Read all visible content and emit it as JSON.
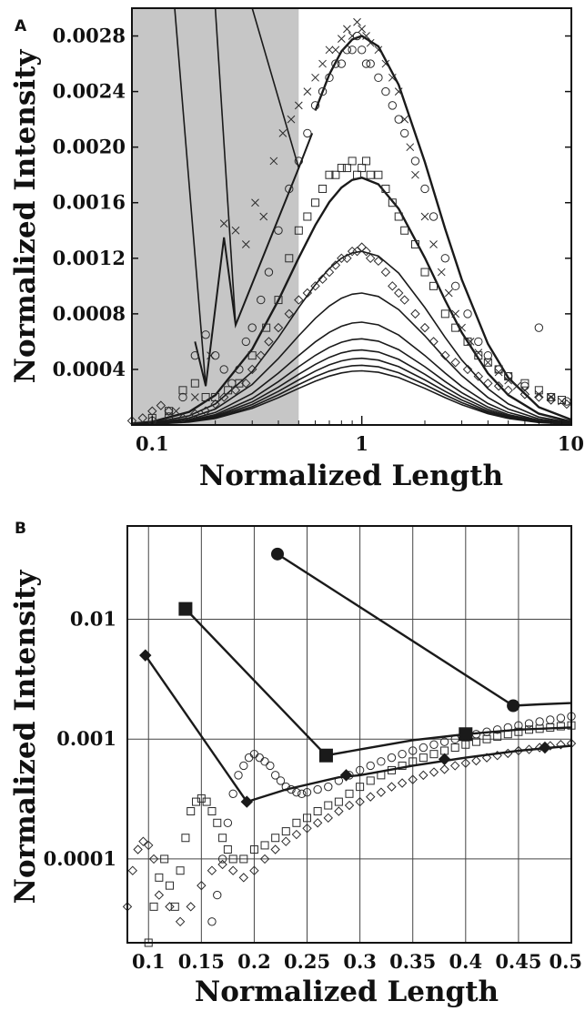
{
  "figure": {
    "panel_a_label": "A",
    "panel_b_label": "B"
  },
  "colors": {
    "shade": "#c6c6c6",
    "line": "#1a1a1a",
    "marker": "#2a2a2a",
    "grid": "#444444"
  },
  "chart_data": [
    {
      "panel": "A",
      "type": "line",
      "xlabel": "Normalized Length",
      "ylabel": "Normalized Intensity",
      "x_scale": "log",
      "xlim": [
        0.08,
        10
      ],
      "ylim": [
        0,
        0.003
      ],
      "x_ticks": [
        0.1,
        1,
        10
      ],
      "x_tick_labels": [
        "0.1",
        "1",
        "10"
      ],
      "y_ticks": [
        0.0004,
        0.0008,
        0.0012,
        0.0016,
        0.002,
        0.0024,
        0.0028
      ],
      "y_tick_labels": [
        "0.0004",
        "0.0008",
        "0.0012",
        "0.0016",
        "0.0020",
        "0.0024",
        "0.0028"
      ],
      "grid": false,
      "shaded_region": [
        0.08,
        0.5
      ],
      "curve_peaks": [
        0.0028,
        0.00178,
        0.00125,
        0.00095,
        0.00074,
        0.00062,
        0.00054,
        0.00048,
        0.00043,
        0.00039
      ],
      "curve_shape": "lognormal, peak at x = 1",
      "curve_x": [
        0.08,
        0.1,
        0.15,
        0.2,
        0.3,
        0.4,
        0.5,
        0.6,
        0.7,
        0.8,
        0.9,
        1.0,
        1.2,
        1.5,
        2.0,
        2.5,
        3.0,
        4.0,
        5.0,
        7.0,
        10.0
      ],
      "top_curve_cutoff": [
        {
          "x": 0.5,
          "y": 0.00185
        },
        {
          "x": 0.58,
          "y": 0.0021
        },
        {
          "x": 0.25,
          "y": 0.00072
        },
        {
          "x": 0.22,
          "y": 0.00135
        },
        {
          "x": 0.18,
          "y": 0.00028
        },
        {
          "x": 0.16,
          "y": 0.0006
        }
      ],
      "boundary_lines": [
        {
          "x": [
            0.128,
            0.18
          ],
          "y": [
            0.003,
            0.00028
          ]
        },
        {
          "x": [
            0.2,
            0.25
          ],
          "y": [
            0.003,
            0.00072
          ]
        },
        {
          "x": [
            0.3,
            0.5
          ],
          "y": [
            0.003,
            0.00185
          ]
        }
      ],
      "series": [
        {
          "marker": "x",
          "x": [
            0.13,
            0.16,
            0.19,
            0.22,
            0.25,
            0.28,
            0.31,
            0.34,
            0.38,
            0.42,
            0.46,
            0.5,
            0.55,
            0.6,
            0.65,
            0.7,
            0.75,
            0.8,
            0.85,
            0.9,
            0.95,
            1.0,
            1.05,
            1.1,
            1.2,
            1.3,
            1.4,
            1.5,
            1.6,
            1.7,
            1.8,
            2.0,
            2.2,
            2.4,
            2.6,
            2.8,
            3.0,
            3.3,
            3.6,
            4.0,
            4.5,
            5.0,
            5.5,
            6.0,
            7.0,
            8.0,
            9.0
          ],
          "y": [
            0.0001,
            0.0002,
            0.0005,
            0.00145,
            0.0014,
            0.0013,
            0.0016,
            0.0015,
            0.0019,
            0.0021,
            0.0022,
            0.0023,
            0.0024,
            0.0025,
            0.0026,
            0.0027,
            0.0027,
            0.00278,
            0.00285,
            0.0028,
            0.0029,
            0.00285,
            0.0028,
            0.00275,
            0.0027,
            0.0026,
            0.0025,
            0.0024,
            0.0022,
            0.002,
            0.0018,
            0.0015,
            0.0013,
            0.0011,
            0.00095,
            0.0008,
            0.0007,
            0.0006,
            0.00052,
            0.00045,
            0.00038,
            0.00032,
            0.00028,
            0.00025,
            0.00022,
            0.0002,
            0.00017
          ]
        },
        {
          "marker": "circle",
          "x": [
            0.1,
            0.12,
            0.14,
            0.16,
            0.18,
            0.2,
            0.22,
            0.24,
            0.26,
            0.28,
            0.3,
            0.33,
            0.36,
            0.4,
            0.45,
            0.5,
            0.55,
            0.6,
            0.65,
            0.7,
            0.75,
            0.8,
            0.85,
            0.9,
            0.95,
            1.0,
            1.05,
            1.1,
            1.2,
            1.3,
            1.4,
            1.5,
            1.6,
            1.8,
            2.0,
            2.2,
            2.5,
            2.8,
            3.2,
            3.6,
            4.0,
            4.5,
            5.0,
            6.0,
            7.0,
            8.0,
            9.5
          ],
          "y": [
            3e-05,
            6e-05,
            0.0002,
            0.0005,
            0.00065,
            0.0005,
            0.0004,
            0.0003,
            0.0004,
            0.0006,
            0.0007,
            0.0009,
            0.0011,
            0.0014,
            0.0017,
            0.0019,
            0.0021,
            0.0023,
            0.0024,
            0.0025,
            0.0026,
            0.0026,
            0.0027,
            0.0027,
            0.0028,
            0.0027,
            0.0026,
            0.0026,
            0.0025,
            0.0024,
            0.0023,
            0.0022,
            0.0021,
            0.0019,
            0.0017,
            0.0015,
            0.0012,
            0.001,
            0.0008,
            0.0006,
            0.0005,
            0.0004,
            0.00035,
            0.00028,
            0.0007,
            0.0002,
            0.00017
          ]
        },
        {
          "marker": "square",
          "x": [
            0.1,
            0.12,
            0.14,
            0.16,
            0.18,
            0.2,
            0.23,
            0.26,
            0.3,
            0.35,
            0.4,
            0.45,
            0.5,
            0.55,
            0.6,
            0.65,
            0.7,
            0.75,
            0.8,
            0.85,
            0.9,
            0.95,
            1.0,
            1.05,
            1.1,
            1.2,
            1.3,
            1.4,
            1.5,
            1.6,
            1.8,
            2.0,
            2.2,
            2.5,
            2.8,
            3.2,
            3.6,
            4.0,
            4.5,
            5.0,
            6.0,
            7.0,
            8.0,
            9.0
          ],
          "y": [
            5e-05,
            0.0001,
            0.00025,
            0.0003,
            0.0002,
            0.0002,
            0.00025,
            0.0003,
            0.0005,
            0.0007,
            0.0009,
            0.0012,
            0.0014,
            0.0015,
            0.0016,
            0.0017,
            0.0018,
            0.0018,
            0.00185,
            0.00185,
            0.0019,
            0.0018,
            0.00185,
            0.0019,
            0.0018,
            0.0018,
            0.0017,
            0.0016,
            0.0015,
            0.0014,
            0.0013,
            0.0011,
            0.001,
            0.0008,
            0.0007,
            0.0006,
            0.0005,
            0.00045,
            0.0004,
            0.00035,
            0.0003,
            0.00025,
            0.0002,
            0.00018
          ]
        },
        {
          "marker": "diamond",
          "x": [
            0.08,
            0.09,
            0.1,
            0.11,
            0.12,
            0.14,
            0.16,
            0.18,
            0.2,
            0.22,
            0.25,
            0.28,
            0.3,
            0.33,
            0.36,
            0.4,
            0.45,
            0.5,
            0.55,
            0.6,
            0.65,
            0.7,
            0.75,
            0.8,
            0.85,
            0.9,
            0.95,
            1.0,
            1.05,
            1.1,
            1.2,
            1.3,
            1.4,
            1.5,
            1.6,
            1.8,
            2.0,
            2.2,
            2.5,
            2.8,
            3.2,
            3.6,
            4.0,
            4.5,
            5.0,
            6.0,
            7.0,
            8.0,
            9.5
          ],
          "y": [
            3e-05,
            5e-05,
            0.0001,
            0.00014,
            0.0001,
            5e-05,
            8e-05,
            0.0001,
            0.00015,
            0.0002,
            0.00025,
            0.0003,
            0.0004,
            0.0005,
            0.0006,
            0.0007,
            0.0008,
            0.0009,
            0.00095,
            0.001,
            0.00105,
            0.0011,
            0.00115,
            0.0012,
            0.0012,
            0.00125,
            0.00125,
            0.00128,
            0.00125,
            0.0012,
            0.00118,
            0.0011,
            0.001,
            0.00095,
            0.0009,
            0.0008,
            0.0007,
            0.0006,
            0.0005,
            0.00045,
            0.0004,
            0.00035,
            0.0003,
            0.00028,
            0.00025,
            0.00022,
            0.0002,
            0.00018,
            0.00015
          ]
        }
      ]
    },
    {
      "panel": "B",
      "type": "scatter",
      "xlabel": "Normalized Length",
      "ylabel": "Normalized Intensity",
      "y_scale": "log",
      "xlim": [
        0.08,
        0.5
      ],
      "ylim": [
        2e-05,
        0.06
      ],
      "x_ticks": [
        0.1,
        0.15,
        0.2,
        0.25,
        0.3,
        0.35,
        0.4,
        0.45,
        0.5
      ],
      "x_tick_labels": [
        "0.1",
        "0.15",
        "0.2",
        "0.25",
        "0.3",
        "0.35",
        "0.4",
        "0.45",
        "0.5"
      ],
      "y_ticks": [
        0.0001,
        0.001,
        0.01
      ],
      "y_tick_labels": [
        "0.0001",
        "0.001",
        "0.01"
      ],
      "grid": true,
      "lines": [
        {
          "name_marker": "filled-circle",
          "x": [
            0.222,
            0.445
          ],
          "y": [
            0.035,
            0.0019
          ]
        },
        {
          "name_marker": "filled-square",
          "x": [
            0.135,
            0.268
          ],
          "y": [
            0.0122,
            0.00073
          ]
        },
        {
          "name_marker": "filled-diamond",
          "x": [
            0.097,
            0.193
          ],
          "y": [
            0.005,
            0.0003
          ]
        }
      ],
      "tail_curves": [
        {
          "x": [
            0.445,
            0.47,
            0.5
          ],
          "y": [
            0.0019,
            0.00195,
            0.002
          ]
        },
        {
          "x": [
            0.268,
            0.3,
            0.35,
            0.4,
            0.45,
            0.5
          ],
          "y": [
            0.00073,
            0.00082,
            0.00098,
            0.0011,
            0.0012,
            0.00125
          ]
        },
        {
          "x": [
            0.193,
            0.23,
            0.28,
            0.3,
            0.35,
            0.4,
            0.45,
            0.5
          ],
          "y": [
            0.0003,
            0.00038,
            0.00048,
            0.0005,
            0.0006,
            0.0007,
            0.0008,
            0.00088
          ]
        }
      ],
      "filled_markers_on_tails": [
        {
          "marker": "filled-diamond",
          "x": 0.287,
          "y": 0.0005
        },
        {
          "marker": "filled-diamond",
          "x": 0.38,
          "y": 0.00068
        },
        {
          "marker": "filled-diamond",
          "x": 0.475,
          "y": 0.00085
        },
        {
          "marker": "filled-square",
          "x": 0.4,
          "y": 0.0011
        }
      ],
      "series": [
        {
          "marker": "circle",
          "x": [
            0.16,
            0.165,
            0.17,
            0.175,
            0.18,
            0.185,
            0.19,
            0.195,
            0.2,
            0.205,
            0.21,
            0.215,
            0.22,
            0.225,
            0.23,
            0.235,
            0.24,
            0.245,
            0.25,
            0.26,
            0.27,
            0.28,
            0.29,
            0.3,
            0.31,
            0.32,
            0.33,
            0.34,
            0.35,
            0.36,
            0.37,
            0.38,
            0.39,
            0.4,
            0.41,
            0.42,
            0.43,
            0.44,
            0.45,
            0.46,
            0.47,
            0.48,
            0.49,
            0.5
          ],
          "y": [
            3e-05,
            5e-05,
            0.0001,
            0.0002,
            0.00035,
            0.0005,
            0.0006,
            0.0007,
            0.00075,
            0.0007,
            0.00065,
            0.0006,
            0.0005,
            0.00045,
            0.0004,
            0.00038,
            0.00036,
            0.00035,
            0.00036,
            0.00038,
            0.0004,
            0.00045,
            0.0005,
            0.00055,
            0.0006,
            0.00065,
            0.0007,
            0.00075,
            0.0008,
            0.00085,
            0.0009,
            0.00095,
            0.001,
            0.00105,
            0.0011,
            0.00115,
            0.0012,
            0.00125,
            0.0013,
            0.00135,
            0.0014,
            0.00145,
            0.0015,
            0.00155
          ]
        },
        {
          "marker": "square",
          "x": [
            0.1,
            0.105,
            0.11,
            0.115,
            0.12,
            0.125,
            0.13,
            0.135,
            0.14,
            0.145,
            0.15,
            0.155,
            0.16,
            0.165,
            0.17,
            0.175,
            0.18,
            0.19,
            0.2,
            0.21,
            0.22,
            0.23,
            0.24,
            0.25,
            0.26,
            0.27,
            0.28,
            0.29,
            0.3,
            0.31,
            0.32,
            0.33,
            0.34,
            0.35,
            0.36,
            0.37,
            0.38,
            0.39,
            0.4,
            0.41,
            0.42,
            0.43,
            0.44,
            0.45,
            0.46,
            0.47,
            0.48,
            0.49,
            0.5
          ],
          "y": [
            2e-05,
            4e-05,
            7e-05,
            0.0001,
            6e-05,
            4e-05,
            8e-05,
            0.00015,
            0.00025,
            0.0003,
            0.00032,
            0.0003,
            0.00025,
            0.0002,
            0.00015,
            0.00012,
            0.0001,
            0.0001,
            0.00012,
            0.00013,
            0.00015,
            0.00017,
            0.0002,
            0.00022,
            0.00025,
            0.00028,
            0.0003,
            0.00035,
            0.0004,
            0.00045,
            0.0005,
            0.00055,
            0.0006,
            0.00065,
            0.0007,
            0.00075,
            0.0008,
            0.00085,
            0.0009,
            0.00095,
            0.001,
            0.00105,
            0.0011,
            0.00115,
            0.0012,
            0.00122,
            0.00125,
            0.00128,
            0.0013
          ]
        },
        {
          "marker": "diamond",
          "x": [
            0.08,
            0.085,
            0.09,
            0.095,
            0.1,
            0.105,
            0.11,
            0.12,
            0.13,
            0.14,
            0.15,
            0.16,
            0.17,
            0.18,
            0.19,
            0.2,
            0.21,
            0.22,
            0.23,
            0.24,
            0.25,
            0.26,
            0.27,
            0.28,
            0.29,
            0.3,
            0.31,
            0.32,
            0.33,
            0.34,
            0.35,
            0.36,
            0.37,
            0.38,
            0.39,
            0.4,
            0.41,
            0.42,
            0.43,
            0.44,
            0.45,
            0.46,
            0.47,
            0.48,
            0.49,
            0.5
          ],
          "y": [
            4e-05,
            8e-05,
            0.00012,
            0.00014,
            0.00013,
            0.0001,
            5e-05,
            4e-05,
            3e-05,
            4e-05,
            6e-05,
            8e-05,
            9e-05,
            8e-05,
            7e-05,
            8e-05,
            0.0001,
            0.00012,
            0.00014,
            0.00016,
            0.00018,
            0.0002,
            0.00022,
            0.00025,
            0.00028,
            0.0003,
            0.00033,
            0.00036,
            0.0004,
            0.00043,
            0.00046,
            0.0005,
            0.00053,
            0.00056,
            0.0006,
            0.00063,
            0.00066,
            0.0007,
            0.00073,
            0.00076,
            0.0008,
            0.00082,
            0.00085,
            0.00088,
            0.0009,
            0.00092
          ]
        }
      ]
    }
  ]
}
